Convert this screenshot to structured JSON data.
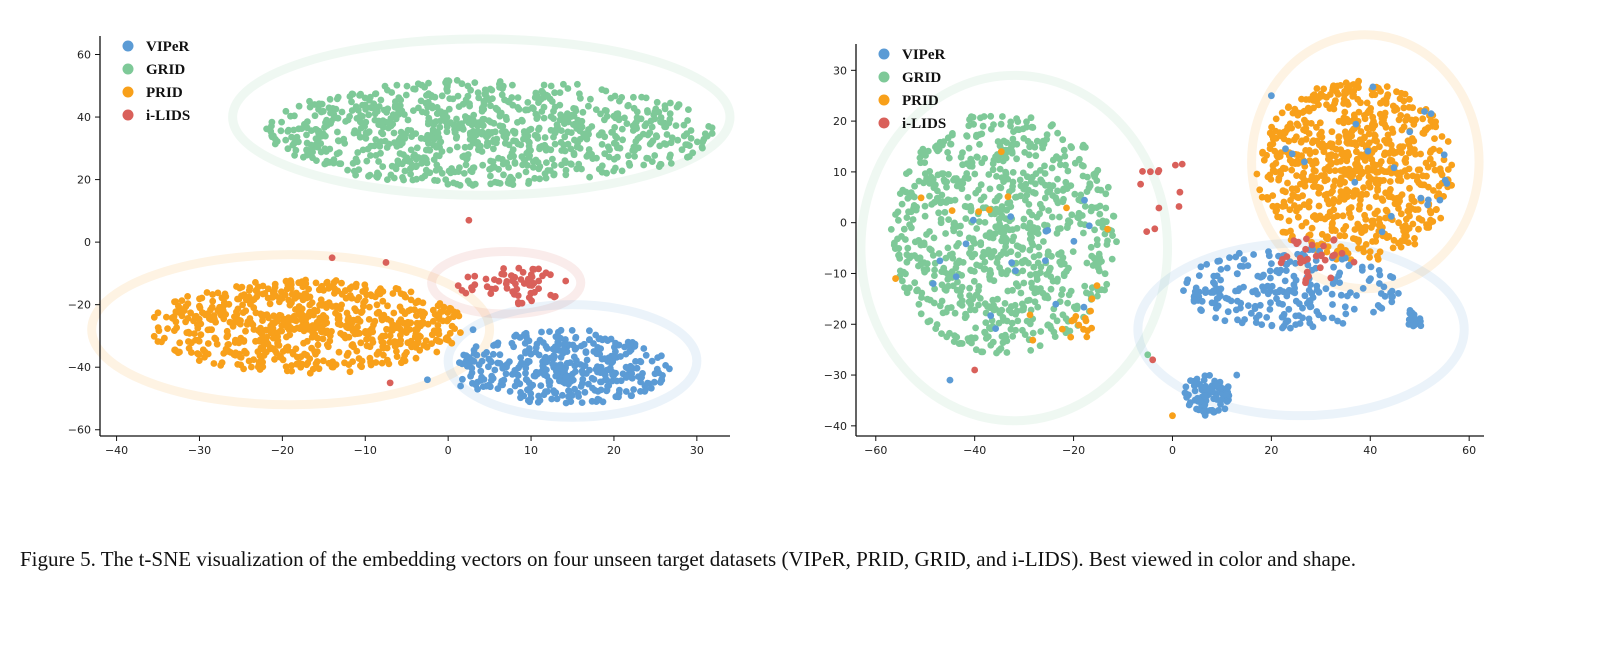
{
  "caption": "Figure 5. The t-SNE visualization of the embedding vectors on four unseen target datasets (VIPeR, PRID, GRID, and i-LIDS). Best viewed in color and shape.",
  "colors": {
    "VIPeR": "#5b9bd5",
    "GRID": "#7ec998",
    "PRID": "#f8a01a",
    "i-LIDS": "#d9605a"
  },
  "chart_data": [
    {
      "type": "scatter",
      "title": "",
      "xlabel": "",
      "ylabel": "",
      "xlim": [
        -42,
        34
      ],
      "ylim": [
        -62,
        64
      ],
      "xticks": [
        -40,
        -30,
        -20,
        -10,
        0,
        10,
        20,
        30
      ],
      "yticks": [
        -60,
        -40,
        -20,
        0,
        20,
        40,
        60
      ],
      "legend": [
        "VIPeR",
        "GRID",
        "PRID",
        "i-LIDS"
      ],
      "legend_position": "top-left",
      "grid": false,
      "clusters": [
        {
          "series": "GRID",
          "center": [
            5,
            35
          ],
          "radius": [
            27,
            17
          ],
          "count": 900,
          "seed": 11
        },
        {
          "series": "PRID",
          "center": [
            -17,
            -27
          ],
          "radius": [
            19,
            15
          ],
          "count": 720,
          "seed": 22
        },
        {
          "series": "i-LIDS",
          "center": [
            8,
            -14
          ],
          "radius": [
            7,
            6
          ],
          "count": 60,
          "seed": 33
        },
        {
          "series": "VIPeR",
          "center": [
            14,
            -40
          ],
          "radius": [
            13,
            12
          ],
          "count": 380,
          "seed": 44
        }
      ],
      "outliers": [
        {
          "series": "i-LIDS",
          "x": 2.5,
          "y": 7
        },
        {
          "series": "i-LIDS",
          "x": -14,
          "y": -5
        },
        {
          "series": "i-LIDS",
          "x": -7.5,
          "y": -6.5
        },
        {
          "series": "i-LIDS",
          "x": -7,
          "y": -45
        },
        {
          "series": "VIPeR",
          "x": -2.5,
          "y": -44
        },
        {
          "series": "VIPeR",
          "x": 1.5,
          "y": -46
        },
        {
          "series": "VIPeR",
          "x": 3,
          "y": -28
        }
      ],
      "ellipses": [
        {
          "series": "GRID",
          "center": [
            4,
            40
          ],
          "radius": [
            30,
            25
          ]
        },
        {
          "series": "PRID",
          "center": [
            -19,
            -28
          ],
          "radius": [
            24,
            24
          ]
        },
        {
          "series": "i-LIDS",
          "center": [
            7,
            -13
          ],
          "radius": [
            9,
            10
          ]
        },
        {
          "series": "VIPeR",
          "center": [
            15,
            -38
          ],
          "radius": [
            15,
            18
          ]
        }
      ]
    },
    {
      "type": "scatter",
      "title": "",
      "xlabel": "",
      "ylabel": "",
      "xlim": [
        -64,
        63
      ],
      "ylim": [
        -42,
        34
      ],
      "xticks": [
        -60,
        -40,
        -20,
        0,
        20,
        40,
        60
      ],
      "yticks": [
        -40,
        -30,
        -20,
        -10,
        0,
        10,
        20,
        30
      ],
      "legend": [
        "VIPeR",
        "GRID",
        "PRID",
        "i-LIDS"
      ],
      "legend_position": "top-left",
      "grid": false,
      "clusters": [
        {
          "series": "GRID",
          "center": [
            -34,
            -2
          ],
          "radius": [
            23,
            24
          ],
          "count": 820,
          "seed": 55
        },
        {
          "series": "PRID",
          "center": [
            37,
            10
          ],
          "radius": [
            20,
            18
          ],
          "count": 760,
          "seed": 66
        },
        {
          "series": "VIPeR",
          "center": [
            24,
            -13
          ],
          "radius": [
            22,
            8
          ],
          "count": 230,
          "seed": 77
        },
        {
          "series": "VIPeR",
          "center": [
            7,
            -34
          ],
          "radius": [
            5,
            4
          ],
          "count": 90,
          "seed": 88
        },
        {
          "series": "VIPeR",
          "center": [
            49,
            -19
          ],
          "radius": [
            2,
            2
          ],
          "count": 18,
          "seed": 99
        },
        {
          "series": "i-LIDS",
          "center": [
            29,
            -7
          ],
          "radius": [
            8,
            5
          ],
          "count": 30,
          "seed": 111
        },
        {
          "series": "PRID",
          "center": [
            -19,
            -20
          ],
          "radius": [
            5,
            3
          ],
          "count": 14,
          "seed": 122
        },
        {
          "series": "VIPeR",
          "center": [
            -30,
            -8
          ],
          "radius": [
            22,
            18
          ],
          "count": 18,
          "seed": 133
        },
        {
          "series": "PRID",
          "center": [
            -30,
            -5
          ],
          "radius": [
            24,
            20
          ],
          "count": 12,
          "seed": 144
        },
        {
          "series": "i-LIDS",
          "center": [
            -2,
            5
          ],
          "radius": [
            6,
            10
          ],
          "count": 12,
          "seed": 155
        },
        {
          "series": "VIPeR",
          "center": [
            40,
            12
          ],
          "radius": [
            18,
            15
          ],
          "count": 20,
          "seed": 166
        }
      ],
      "outliers": [
        {
          "series": "PRID",
          "x": 0,
          "y": -38
        },
        {
          "series": "i-LIDS",
          "x": -40,
          "y": -29
        },
        {
          "series": "i-LIDS",
          "x": -4,
          "y": -27
        },
        {
          "series": "GRID",
          "x": -5,
          "y": -26
        },
        {
          "series": "VIPeR",
          "x": -45,
          "y": -31
        },
        {
          "series": "PRID",
          "x": -56,
          "y": -11
        },
        {
          "series": "VIPeR",
          "x": 13,
          "y": -30
        },
        {
          "series": "VIPeR",
          "x": 20,
          "y": 25
        }
      ],
      "ellipses": [
        {
          "series": "GRID",
          "center": [
            -32,
            -5
          ],
          "radius": [
            31,
            34
          ]
        },
        {
          "series": "PRID",
          "center": [
            39,
            12
          ],
          "radius": [
            23,
            25
          ]
        },
        {
          "series": "VIPeR",
          "center": [
            26,
            -21
          ],
          "radius": [
            33,
            17
          ]
        }
      ]
    }
  ]
}
